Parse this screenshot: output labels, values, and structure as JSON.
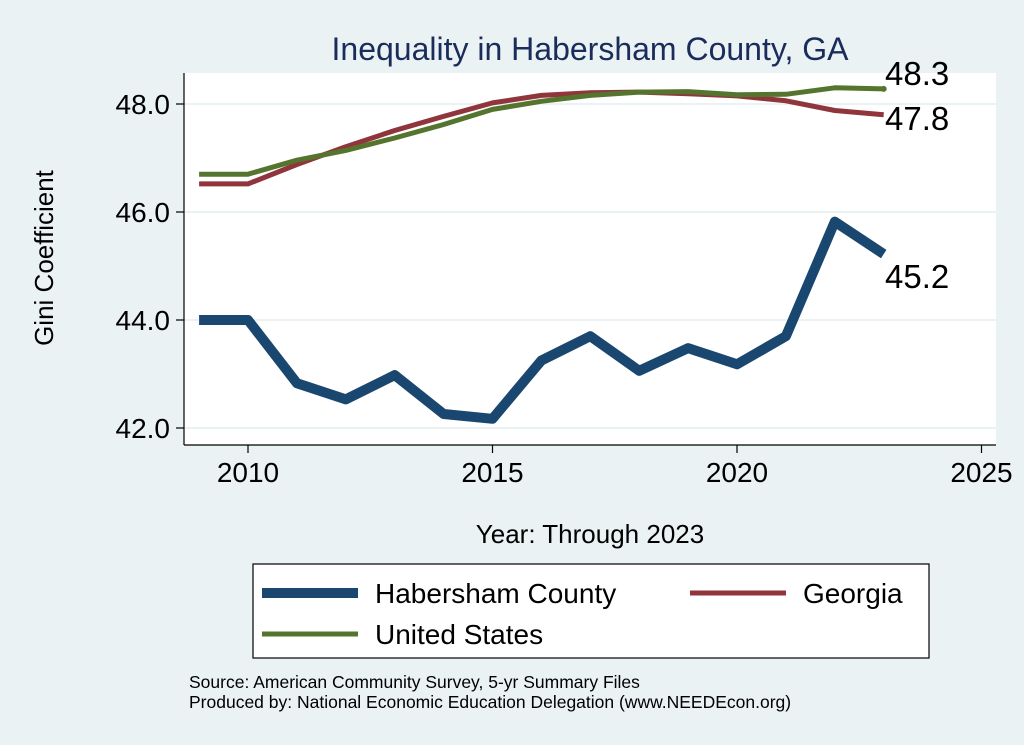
{
  "chart_data": {
    "type": "line",
    "title": "Inequality in Habersham County, GA",
    "xlabel": "Year: Through 2023",
    "ylabel": "Gini Coefficient",
    "xlim": [
      2009,
      2025
    ],
    "ylim": [
      41.8,
      48.6
    ],
    "x_ticks": [
      2010,
      2015,
      2020,
      2025
    ],
    "y_ticks": [
      42.0,
      44.0,
      46.0,
      48.0
    ],
    "y_tick_labels": [
      "42.0",
      "44.0",
      "46.0",
      "48.0"
    ],
    "grid": true,
    "legend_position": "bottom",
    "x": [
      2009,
      2010,
      2011,
      2012,
      2013,
      2014,
      2015,
      2016,
      2017,
      2018,
      2019,
      2020,
      2021,
      2022,
      2023
    ],
    "series": [
      {
        "name": "Habersham County",
        "color": "#1a476f",
        "values": [
          44.0,
          44.0,
          42.83,
          42.53,
          42.98,
          42.26,
          42.17,
          43.25,
          43.7,
          43.06,
          43.48,
          43.18,
          43.7,
          45.82,
          45.22
        ],
        "end_label": "45.2"
      },
      {
        "name": "Georgia",
        "color": "#90353b",
        "values": [
          46.52,
          46.52,
          46.88,
          47.21,
          47.51,
          47.77,
          48.02,
          48.16,
          48.21,
          48.22,
          48.19,
          48.15,
          48.06,
          47.88,
          47.8
        ],
        "end_label": "47.8"
      },
      {
        "name": "United States",
        "color": "#55752f",
        "values": [
          46.7,
          46.7,
          46.96,
          47.14,
          47.37,
          47.62,
          47.9,
          48.05,
          48.16,
          48.22,
          48.23,
          48.17,
          48.18,
          48.3,
          48.28
        ],
        "end_label": "48.3"
      }
    ],
    "notes": [
      "Source: American Community Survey, 5-yr Summary Files",
      "Produced by: National Economic Education Delegation (www.NEEDEcon.org)"
    ],
    "colors": {
      "background": "#eaf2f3",
      "plot_background": "#ffffff",
      "title": "#1a2c5b",
      "gridline": "#eaf2f3"
    }
  }
}
